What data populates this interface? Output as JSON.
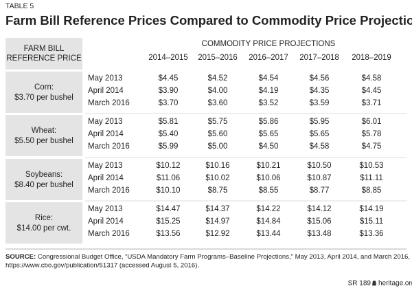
{
  "header": {
    "label": "TABLE 5",
    "title": "Farm Bill Reference Prices Compared to Commodity Price Projections"
  },
  "table": {
    "corner": [
      "FARM BILL",
      "REFERENCE PRICE"
    ],
    "span_header": "COMMODITY PRICE PROJECTIONS",
    "columns": [
      "2014–2015",
      "2015–2016",
      "2016–2017",
      "2017–2018",
      "2018–2019"
    ],
    "groups": [
      {
        "label": [
          "Corn:",
          "$3.70 per bushel"
        ],
        "rows": [
          {
            "date": "May 2013",
            "values": [
              "$4.45",
              "$4.52",
              "$4.54",
              "$4.56",
              "$4.58"
            ]
          },
          {
            "date": "April 2014",
            "values": [
              "$3.90",
              "$4.00",
              "$4.19",
              "$4.35",
              "$4.45"
            ]
          },
          {
            "date": "March 2016",
            "values": [
              "$3.70",
              "$3.60",
              "$3.52",
              "$3.59",
              "$3.71"
            ]
          }
        ]
      },
      {
        "label": [
          "Wheat:",
          "$5.50 per bushel"
        ],
        "rows": [
          {
            "date": "May 2013",
            "values": [
              "$5.81",
              "$5.75",
              "$5.86",
              "$5.95",
              "$6.01"
            ]
          },
          {
            "date": "April 2014",
            "values": [
              "$5.40",
              "$5.60",
              "$5.65",
              "$5.65",
              "$5.78"
            ]
          },
          {
            "date": "March 2016",
            "values": [
              "$5.99",
              "$5.00",
              "$4.50",
              "$4.58",
              "$4.75"
            ]
          }
        ]
      },
      {
        "label": [
          "Soybeans:",
          "$8.40 per bushel"
        ],
        "rows": [
          {
            "date": "May 2013",
            "values": [
              "$10.12",
              "$10.16",
              "$10.21",
              "$10.50",
              "$10.53"
            ]
          },
          {
            "date": "April 2014",
            "values": [
              "$11.06",
              "$10.02",
              "$10.06",
              "$10.87",
              "$11.11"
            ]
          },
          {
            "date": "March 2016",
            "values": [
              "$10.10",
              "$8.75",
              "$8.55",
              "$8.77",
              "$8.85"
            ]
          }
        ]
      },
      {
        "label": [
          "Rice:",
          "$14.00 per cwt."
        ],
        "rows": [
          {
            "date": "May 2013",
            "values": [
              "$14.47",
              "$14.37",
              "$14.22",
              "$14.12",
              "$14.19"
            ]
          },
          {
            "date": "April 2014",
            "values": [
              "$15.25",
              "$14.97",
              "$14.84",
              "$15.06",
              "$15.11"
            ]
          },
          {
            "date": "March 2016",
            "values": [
              "$13.56",
              "$12.92",
              "$13.44",
              "$13.48",
              "$13.36"
            ]
          }
        ]
      }
    ]
  },
  "source": {
    "label": "SOURCE:",
    "lines": [
      "Congressional Budget Office, “USDA Mandatory Farm Programs–Baseline Projections,” May 2013, April 2014, and March 2016,",
      "https://www.cbo.gov/publication/51317 (accessed August 5, 2016)."
    ]
  },
  "footer": {
    "report": "SR 189",
    "site": "heritage.org"
  }
}
